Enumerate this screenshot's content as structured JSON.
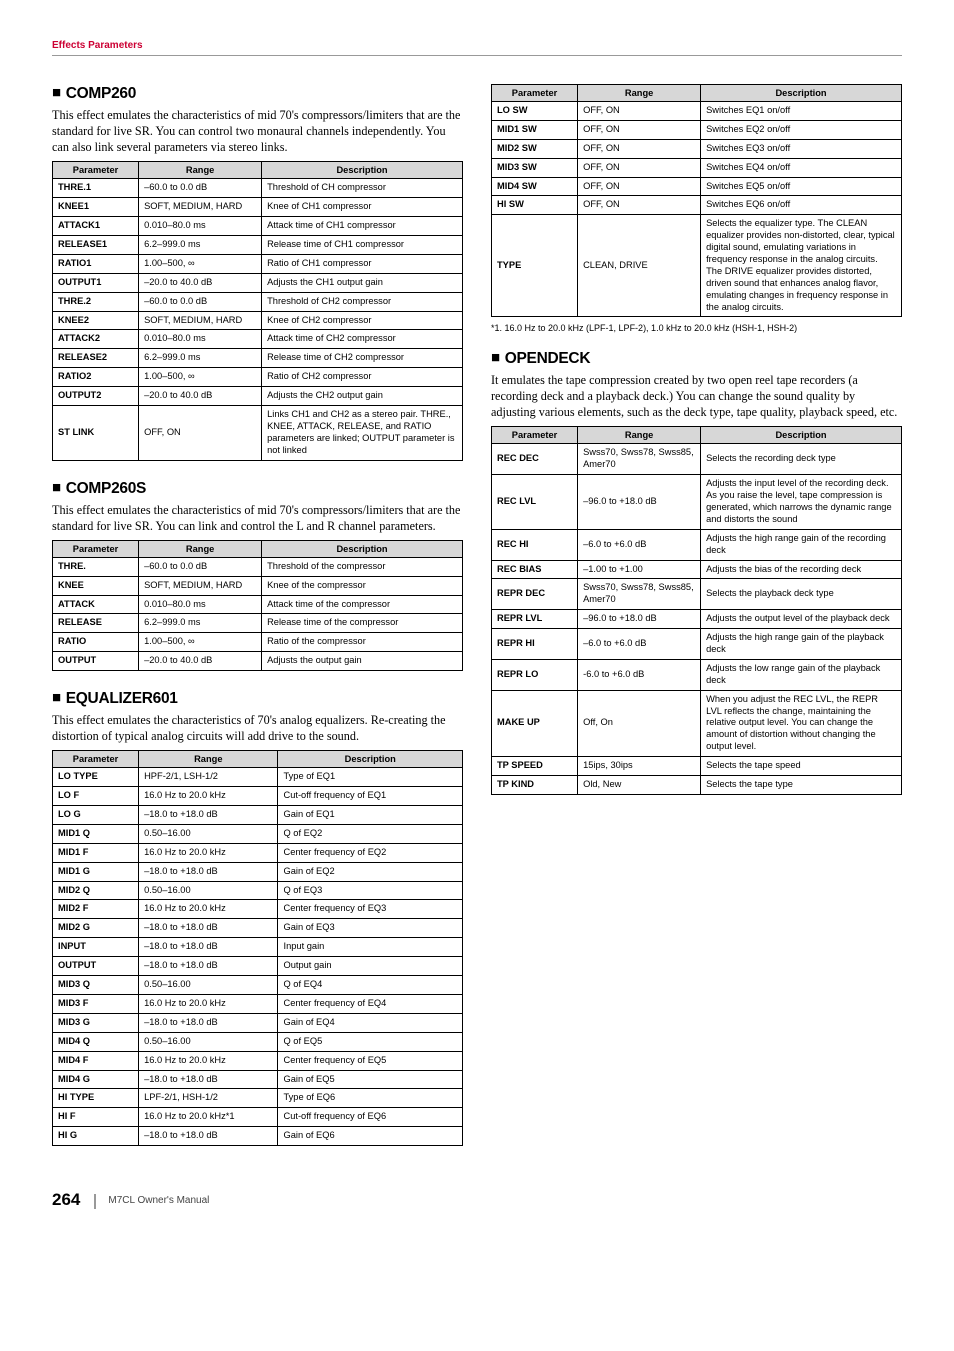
{
  "header": {
    "title": "Effects Parameters"
  },
  "footer": {
    "page": "264",
    "manual": "M7CL  Owner's Manual"
  },
  "cols": {
    "param": "Parameter",
    "range": "Range",
    "desc": "Description"
  },
  "comp260": {
    "title": "COMP260",
    "body": "This effect emulates the characteristics of mid 70's compressors/limiters that are the standard for live SR. You can control two monaural channels independently. You can also link several parameters via stereo links.",
    "rows": [
      [
        "THRE.1",
        "–60.0 to 0.0 dB",
        "Threshold of CH compressor"
      ],
      [
        "KNEE1",
        "SOFT, MEDIUM, HARD",
        "Knee of CH1 compressor"
      ],
      [
        "ATTACK1",
        "0.010–80.0 ms",
        "Attack time of CH1 compressor"
      ],
      [
        "RELEASE1",
        "6.2–999.0 ms",
        "Release time of CH1 compressor"
      ],
      [
        "RATIO1",
        "1.00–500, ∞",
        "Ratio of CH1 compressor"
      ],
      [
        "OUTPUT1",
        "–20.0 to 40.0 dB",
        "Adjusts the CH1 output gain"
      ],
      [
        "THRE.2",
        "–60.0 to 0.0 dB",
        "Threshold of CH2 compressor"
      ],
      [
        "KNEE2",
        "SOFT, MEDIUM, HARD",
        "Knee of CH2 compressor"
      ],
      [
        "ATTACK2",
        "0.010–80.0 ms",
        "Attack time of CH2 compressor"
      ],
      [
        "RELEASE2",
        "6.2–999.0 ms",
        "Release time of CH2 compressor"
      ],
      [
        "RATIO2",
        "1.00–500, ∞",
        "Ratio of CH2 compressor"
      ],
      [
        "OUTPUT2",
        "–20.0 to 40.0 dB",
        "Adjusts the CH2 output gain"
      ],
      [
        "ST LINK",
        "OFF, ON",
        "Links CH1 and CH2 as a stereo pair. THRE., KNEE, ATTACK, RELEASE, and RATIO parameters are linked; OUTPUT parameter is not linked"
      ]
    ]
  },
  "comp260s": {
    "title": "COMP260S",
    "body": "This effect emulates the characteristics of mid 70's compressors/limiters that are the standard for live SR. You can link and control the L and R channel parameters.",
    "rows": [
      [
        "THRE.",
        "–60.0 to 0.0 dB",
        "Threshold of the compressor"
      ],
      [
        "KNEE",
        "SOFT, MEDIUM, HARD",
        "Knee of the compressor"
      ],
      [
        "ATTACK",
        "0.010–80.0 ms",
        "Attack time of the compressor"
      ],
      [
        "RELEASE",
        "6.2–999.0 ms",
        "Release time of the compressor"
      ],
      [
        "RATIO",
        "1.00–500, ∞",
        "Ratio of the compressor"
      ],
      [
        "OUTPUT",
        "–20.0 to 40.0 dB",
        "Adjusts the output gain"
      ]
    ]
  },
  "eq601": {
    "title": "EQUALIZER601",
    "body": "This effect emulates the characteristics of 70's analog equalizers. Re-creating the distortion of typical analog circuits will add drive to the sound.",
    "rows": [
      [
        "LO TYPE",
        "HPF-2/1, LSH-1/2",
        "Type of EQ1"
      ],
      [
        "LO F",
        "16.0 Hz to 20.0 kHz",
        "Cut-off frequency of EQ1"
      ],
      [
        "LO G",
        "–18.0 to +18.0 dB",
        "Gain of EQ1"
      ],
      [
        "MID1 Q",
        "0.50–16.00",
        "Q of EQ2"
      ],
      [
        "MID1 F",
        "16.0 Hz to 20.0 kHz",
        "Center frequency of EQ2"
      ],
      [
        "MID1 G",
        "–18.0 to +18.0 dB",
        "Gain of EQ2"
      ],
      [
        "MID2 Q",
        "0.50–16.00",
        "Q of EQ3"
      ],
      [
        "MID2 F",
        "16.0 Hz to 20.0 kHz",
        "Center frequency of EQ3"
      ],
      [
        "MID2 G",
        "–18.0 to +18.0 dB",
        "Gain of EQ3"
      ],
      [
        "INPUT",
        "–18.0 to +18.0 dB",
        "Input gain"
      ],
      [
        "OUTPUT",
        "–18.0 to +18.0 dB",
        "Output gain"
      ],
      [
        "MID3 Q",
        "0.50–16.00",
        "Q of EQ4"
      ],
      [
        "MID3 F",
        "16.0 Hz to 20.0 kHz",
        "Center frequency of EQ4"
      ],
      [
        "MID3 G",
        "–18.0 to +18.0 dB",
        "Gain of EQ4"
      ],
      [
        "MID4 Q",
        "0.50–16.00",
        "Q of EQ5"
      ],
      [
        "MID4 F",
        "16.0 Hz to 20.0 kHz",
        "Center frequency of EQ5"
      ],
      [
        "MID4 G",
        "–18.0 to +18.0 dB",
        "Gain of EQ5"
      ],
      [
        "HI TYPE",
        "LPF-2/1, HSH-1/2",
        "Type of EQ6"
      ],
      [
        "HI F",
        "16.0 Hz to 20.0 kHz*1",
        "Cut-off frequency of EQ6"
      ],
      [
        "HI G",
        "–18.0 to +18.0 dB",
        "Gain of EQ6"
      ]
    ]
  },
  "eq601_switch": {
    "rows": [
      [
        "LO SW",
        "OFF, ON",
        "Switches EQ1 on/off"
      ],
      [
        "MID1 SW",
        "OFF, ON",
        "Switches EQ2 on/off"
      ],
      [
        "MID2 SW",
        "OFF, ON",
        "Switches EQ3 on/off"
      ],
      [
        "MID3 SW",
        "OFF, ON",
        "Switches EQ4 on/off"
      ],
      [
        "MID4 SW",
        "OFF, ON",
        "Switches EQ5 on/off"
      ],
      [
        "HI SW",
        "OFF, ON",
        "Switches EQ6 on/off"
      ],
      [
        "TYPE",
        "CLEAN, DRIVE",
        "Selects the equalizer type. The CLEAN equalizer provides non-distorted, clear, typical digital sound, emulating variations in frequency response in the analog circuits. The DRIVE equalizer provides distorted, driven sound that enhances analog flavor, emulating changes in frequency response in the analog circuits."
      ]
    ],
    "footnote": "*1.   16.0 Hz to 20.0 kHz (LPF-1, LPF-2), 1.0 kHz to 20.0 kHz (HSH-1, HSH-2)"
  },
  "opendeck": {
    "title": "OPENDECK",
    "body": "It emulates the tape compression created by two open reel tape recorders (a recording deck and a playback deck.) You can change the sound quality by adjusting various elements, such as the deck type, tape quality, playback speed, etc.",
    "rows": [
      [
        "REC DEC",
        "Swss70, Swss78, Swss85, Amer70",
        "Selects the recording deck type"
      ],
      [
        "REC LVL",
        "–96.0 to +18.0 dB",
        "Adjusts the input level of the recording deck. As you raise the level, tape compression is generated, which narrows the dynamic range and distorts the sound"
      ],
      [
        "REC HI",
        "–6.0 to +6.0 dB",
        "Adjusts the high range gain of the recording deck"
      ],
      [
        "REC BIAS",
        "–1.00 to +1.00",
        "Adjusts the bias of the recording deck"
      ],
      [
        "REPR DEC",
        "Swss70, Swss78, Swss85, Amer70",
        "Selects the playback deck type"
      ],
      [
        "REPR LVL",
        "–96.0 to +18.0 dB",
        "Adjusts the output level of the playback deck"
      ],
      [
        "REPR HI",
        "–6.0 to +6.0 dB",
        "Adjusts the high range gain of the playback deck"
      ],
      [
        "REPR LO",
        "-6.0 to +6.0 dB",
        "Adjusts the low range gain of the playback deck"
      ],
      [
        "MAKE UP",
        "Off, On",
        "When you adjust the REC LVL, the REPR LVL reflects the change, maintaining the relative output level. You can change the amount of distortion without changing the output level."
      ],
      [
        "TP SPEED",
        "15ips, 30ips",
        "Selects the tape speed"
      ],
      [
        "TP KIND",
        "Old, New",
        "Selects the tape type"
      ]
    ]
  },
  "col_widths": {
    "c1": "21%",
    "c2": "30%",
    "c3": "49%"
  }
}
